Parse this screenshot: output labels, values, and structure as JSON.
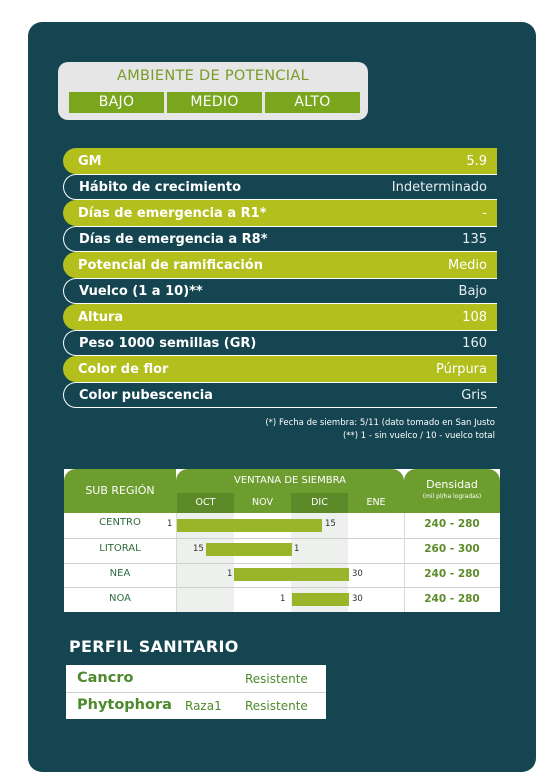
{
  "ambiente": {
    "title": "AMBIENTE DE POTENCIAL",
    "levels": [
      "BAJO",
      "MEDIO",
      "ALTO"
    ]
  },
  "characteristics": [
    {
      "label": "GM",
      "value": "5.9"
    },
    {
      "label": "Hábito de crecimiento",
      "value": "Indeterminado"
    },
    {
      "label": "Días de emergencia a R1*",
      "value": "-"
    },
    {
      "label": "Días de emergencia a R8*",
      "value": "135"
    },
    {
      "label": "Potencial de ramificación",
      "value": "Medio"
    },
    {
      "label": "Vuelco (1 a 10)**",
      "value": "Bajo"
    },
    {
      "label": "Altura",
      "value": "108"
    },
    {
      "label": "Peso 1000 semillas (GR)",
      "value": "160"
    },
    {
      "label": "Color de flor",
      "value": "Púrpura"
    },
    {
      "label": "Color pubescencia",
      "value": "Gris"
    }
  ],
  "footnotes": [
    "(*) Fecha de siembra: 5/11 (dato tomado en San Justo",
    "(**) 1 - sin vuelco / 10 - vuelco total"
  ],
  "siembra": {
    "region_header": "SUB REGIÓN",
    "window_header": "VENTANA DE SIEMBRA",
    "months": [
      "OCT",
      "NOV",
      "DIC",
      "ENE"
    ],
    "density_header": "Densidad",
    "density_unit": "(mil pl/ha logradas)",
    "rows": [
      {
        "region": "CENTRO",
        "start_label": "1",
        "end_label": "15",
        "density": "240 - 280"
      },
      {
        "region": "LITORAL",
        "start_label": "15",
        "end_label": "1",
        "density": "260 - 300"
      },
      {
        "region": "NEA",
        "start_label": "1",
        "end_label": "30",
        "density": "240 - 280"
      },
      {
        "region": "NOA",
        "start_label": "1",
        "end_label": "30",
        "density": "240 - 280"
      }
    ]
  },
  "perfil": {
    "title": "PERFIL SANITARIO",
    "rows": [
      {
        "name": "Cancro",
        "extra": "",
        "value": "Resistente"
      },
      {
        "name": "Phytophora",
        "extra": "Raza1",
        "value": "Resistente"
      }
    ]
  },
  "colors": {
    "background": "#154551",
    "accent_green": "#b2bf1c",
    "header_green": "#6d9d2e",
    "bar_green": "#9bb52a"
  }
}
